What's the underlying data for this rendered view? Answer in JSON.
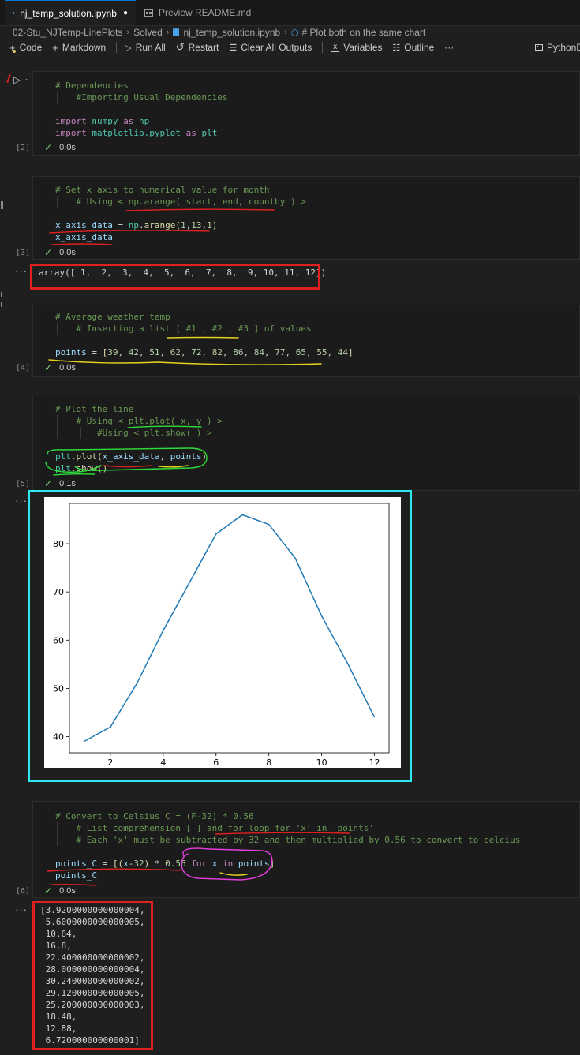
{
  "tabs": [
    {
      "label": "nj_temp_solution.ipynb",
      "dirty": "●"
    },
    {
      "label": "Preview README.md"
    }
  ],
  "breadcrumb": [
    "02-Stu_NJTemp-LinePlots",
    "Solved",
    "nj_temp_solution.ipynb",
    "# Plot both on the same chart"
  ],
  "toolbar": {
    "code": "Code",
    "markdown": "Markdown",
    "run_all": "Run All",
    "restart": "Restart",
    "clear_outputs": "Clear All Outputs",
    "variables": "Variables",
    "outline": "Outline",
    "more": "···",
    "kernel": "PythonD"
  },
  "cells": [
    {
      "index": "[2]",
      "time": "0.0s"
    },
    {
      "index": "[3]",
      "time": "0.0s",
      "output": "array([ 1,  2,  3,  4,  5,  6,  7,  8,  9, 10, 11, 12])"
    },
    {
      "index": "[4]",
      "time": "0.0s"
    },
    {
      "index": "[5]",
      "time": "0.1s"
    },
    {
      "index": "[6]",
      "time": "0.0s",
      "output_lines": [
        "[3.9200000000000004,",
        " 5.6000000000000005,",
        " 10.64,",
        " 16.8,",
        " 22.400000000000002,",
        " 28.000000000000004,",
        " 30.240000000000002,",
        " 29.120000000000005,",
        " 25.200000000000003,",
        " 18.48,",
        " 12.88,",
        " 6.720000000000001]"
      ]
    }
  ],
  "chart_data": {
    "type": "line",
    "x": [
      1,
      2,
      3,
      4,
      5,
      6,
      7,
      8,
      9,
      10,
      11,
      12
    ],
    "series": [
      {
        "values": [
          39,
          42,
          51,
          62,
          72,
          82,
          86,
          84,
          77,
          65,
          55,
          44
        ]
      }
    ],
    "xticks": [
      "2",
      "4",
      "6",
      "8",
      "10",
      "12"
    ],
    "yticks": [
      "40",
      "50",
      "60",
      "70",
      "80"
    ],
    "xlim": [
      0.45,
      12.55
    ],
    "ylim": [
      36.65,
      88.35
    ],
    "title": "",
    "xlabel": "",
    "ylabel": "",
    "grid": false,
    "line_color": "#1f77b4"
  }
}
